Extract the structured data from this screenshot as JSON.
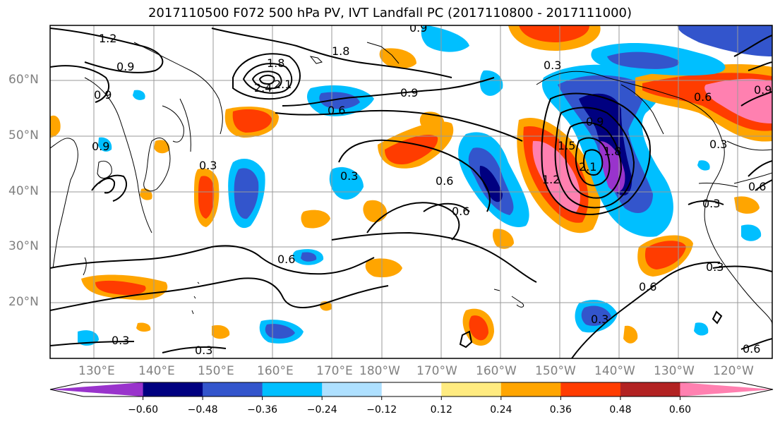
{
  "title": "2017110500 F072 500 hPa PV, IVT Landfall PC (2017110800 - 2017111000)",
  "lat_labels": [
    "60°N",
    "50°N",
    "40°N",
    "30°N",
    "20°N"
  ],
  "lon_labels": [
    "130°E",
    "140°E",
    "150°E",
    "160°E",
    "170°E",
    "180°W",
    "170°W",
    "160°W",
    "150°W",
    "140°W",
    "130°W",
    "120°W"
  ],
  "colorbar": {
    "ticks": [
      "−0.60",
      "−0.48",
      "−0.36",
      "−0.24",
      "−0.12",
      "0.12",
      "0.24",
      "0.36",
      "0.48",
      "0.60"
    ],
    "colors": [
      "#9933cc",
      "#000080",
      "#3355cc",
      "#00bfff",
      "#aee0ff",
      "#ffffff",
      "#ffeb80",
      "#ffa500",
      "#ff3c00",
      "#b22222",
      "#ff80b0"
    ]
  },
  "contour_labels": [
    "1.2",
    "0.9",
    "0.9",
    "1.8",
    "2.4",
    "2.1",
    "1.8",
    "0.9",
    "0.6",
    "0.3",
    "0.6",
    "0.6",
    "0.6",
    "0.3",
    "0.9",
    "1.5",
    "1.2",
    "2.1",
    "1.8",
    "0.9",
    "0.9",
    "0.3",
    "0.6",
    "0.3",
    "0.3",
    "0.6",
    "0.3",
    "0.6",
    "0.3",
    "0.3",
    "0.3",
    "0.9",
    "0.6"
  ]
}
